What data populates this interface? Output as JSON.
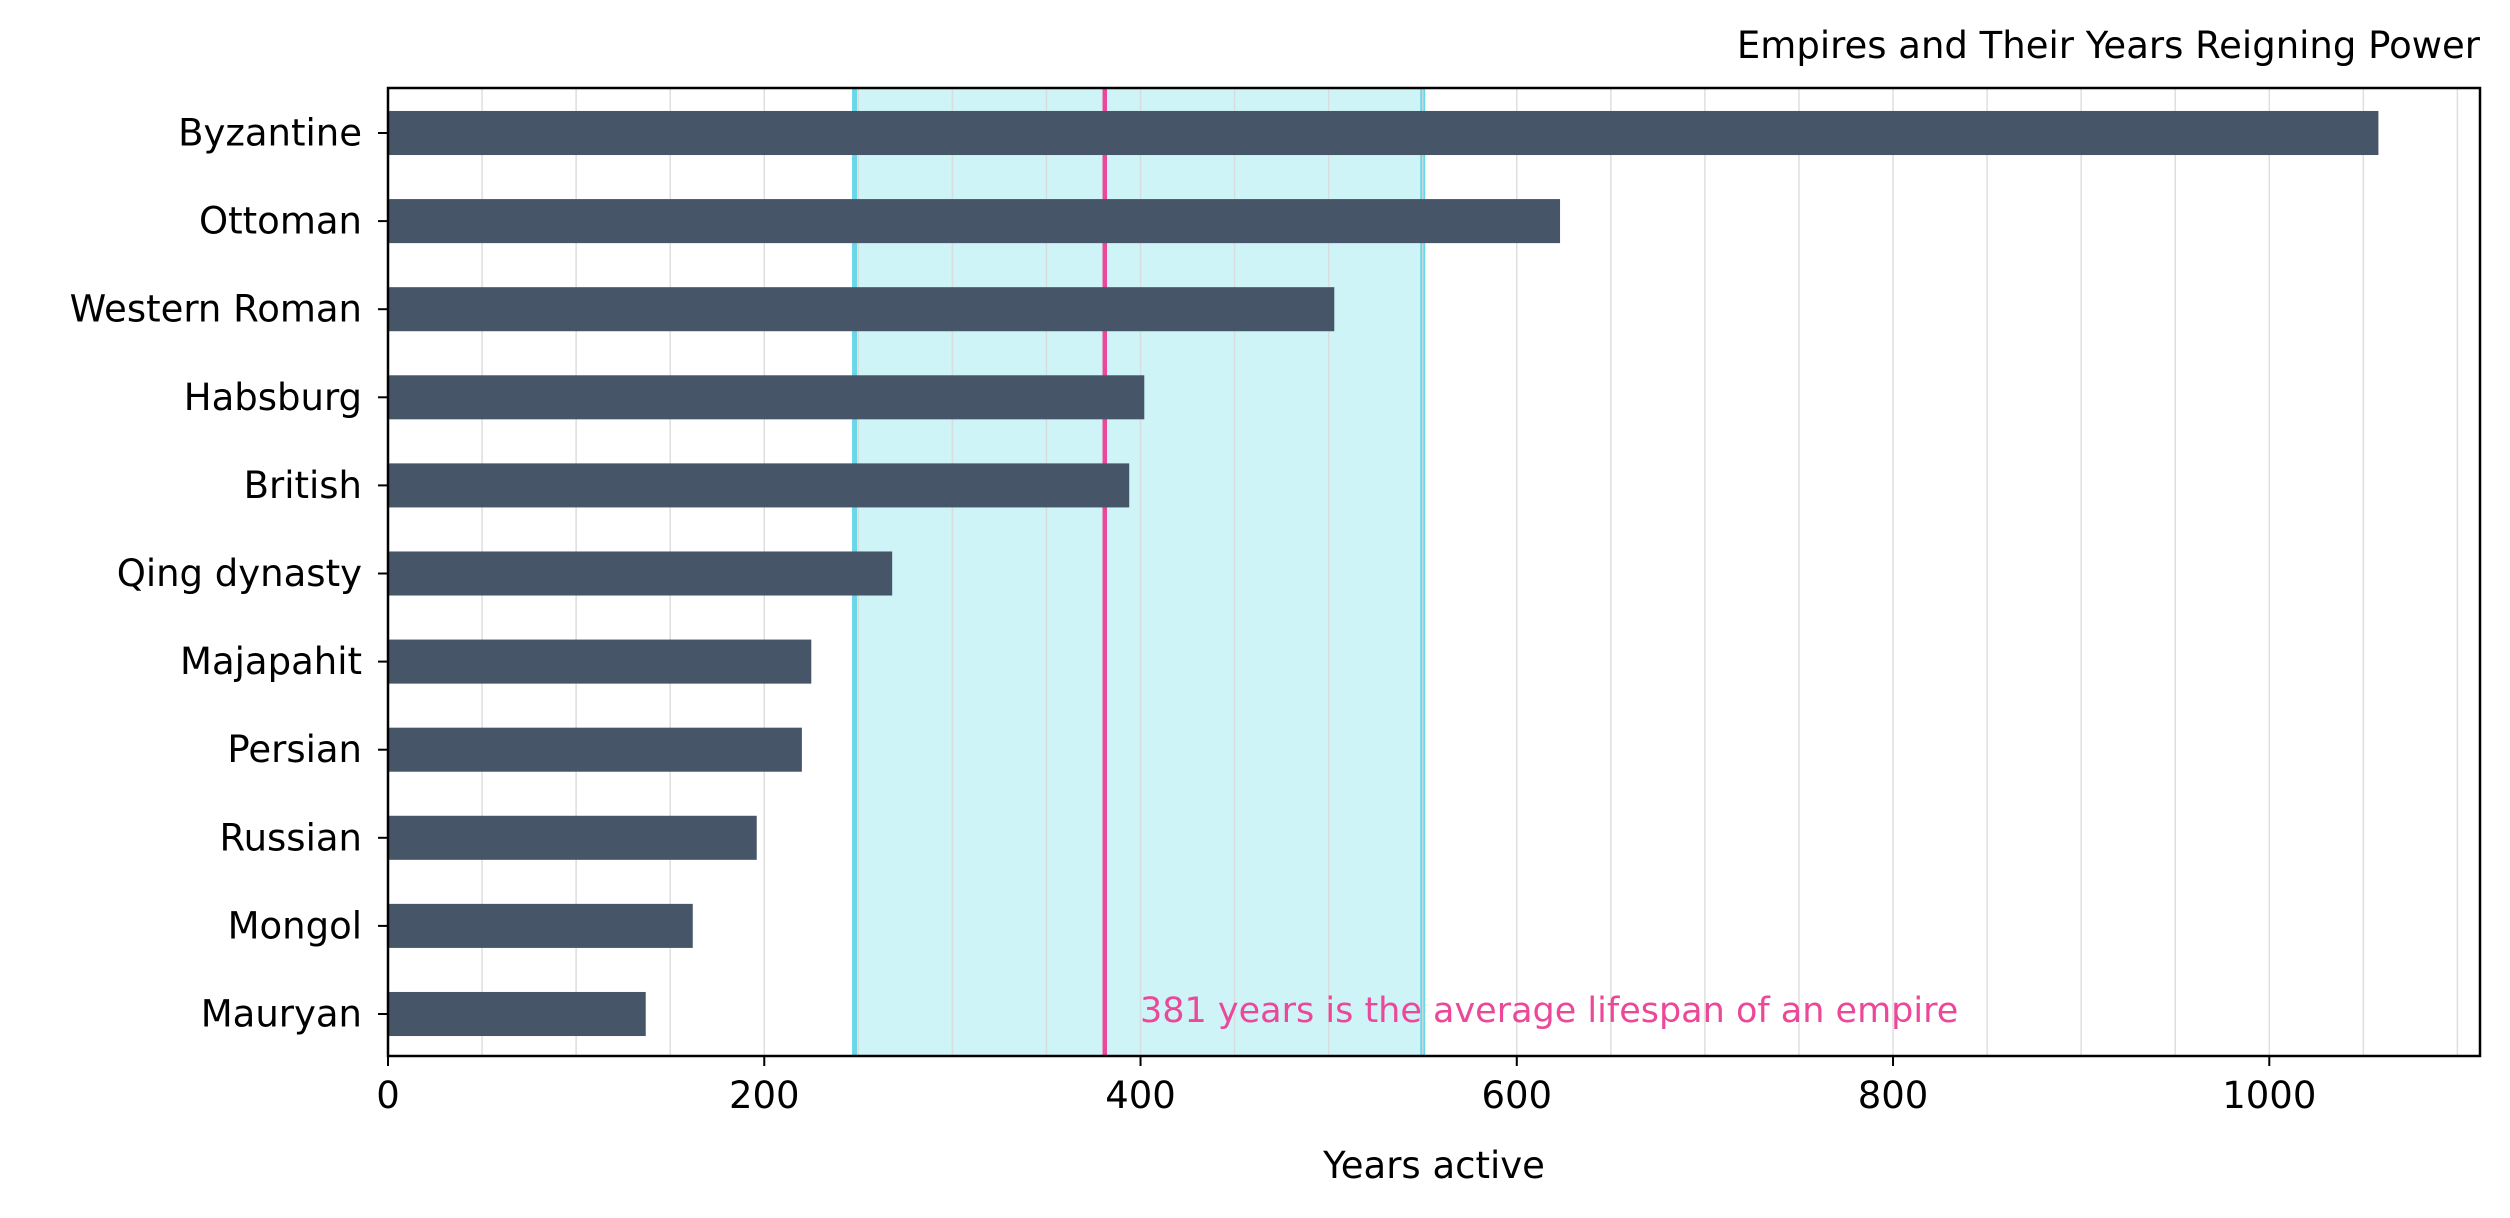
{
  "chart_data": {
    "type": "bar",
    "orientation": "horizontal",
    "title": "Empires and Their Years Reigning Power",
    "xlabel": "Years active",
    "ylabel": "",
    "xlim": [
      0,
      1112
    ],
    "xticks": [
      0,
      200,
      400,
      600,
      800,
      1000
    ],
    "minor_grid_step": 50,
    "grid": "vertical",
    "categories": [
      "Byzantine",
      "Ottoman",
      "Western Roman",
      "Habsburg",
      "British",
      "Qing dynasty",
      "Majapahit",
      "Persian",
      "Russian",
      "Mongol",
      "Mauryan"
    ],
    "values": [
      1058,
      623,
      503,
      402,
      394,
      268,
      225,
      220,
      196,
      162,
      137
    ],
    "highlight_band": [
      248,
      550
    ],
    "reference_line": 381,
    "annotation": "381 years is the average lifespan of an empire",
    "colors": {
      "bar": "#475569",
      "band": "#cff4f8",
      "band_edge": "#67d8ea",
      "reference": "#ec4899",
      "grid": "#d9d9d9",
      "axis": "#000000"
    }
  }
}
